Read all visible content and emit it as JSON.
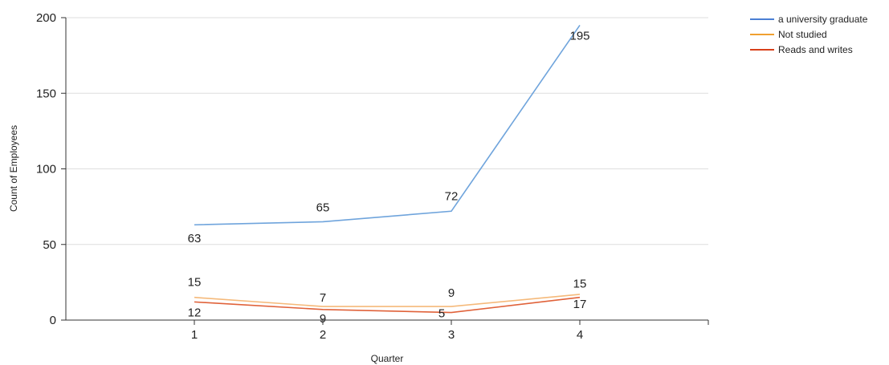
{
  "chart_data": {
    "type": "line",
    "xlabel": "Quarter",
    "ylabel": "Count of Employees",
    "categories": [
      "1",
      "2",
      "3",
      "4"
    ],
    "ylim": [
      0,
      200
    ],
    "yticks": [
      "0",
      "50",
      "100",
      "150",
      "200"
    ],
    "grid": true,
    "legend_position": "top-right",
    "series": [
      {
        "name": "a university graduate",
        "color": "#6fa4dc",
        "legend_color": "#4a7fd4",
        "values": [
          63,
          65,
          72,
          195
        ]
      },
      {
        "name": "Not studied",
        "color": "#f5b97a",
        "legend_color": "#f0a030",
        "values": [
          15,
          9,
          9,
          17
        ]
      },
      {
        "name": "Reads and writes",
        "color": "#e0623a",
        "legend_color": "#d8401a",
        "values": [
          12,
          7,
          5,
          15
        ]
      }
    ]
  }
}
